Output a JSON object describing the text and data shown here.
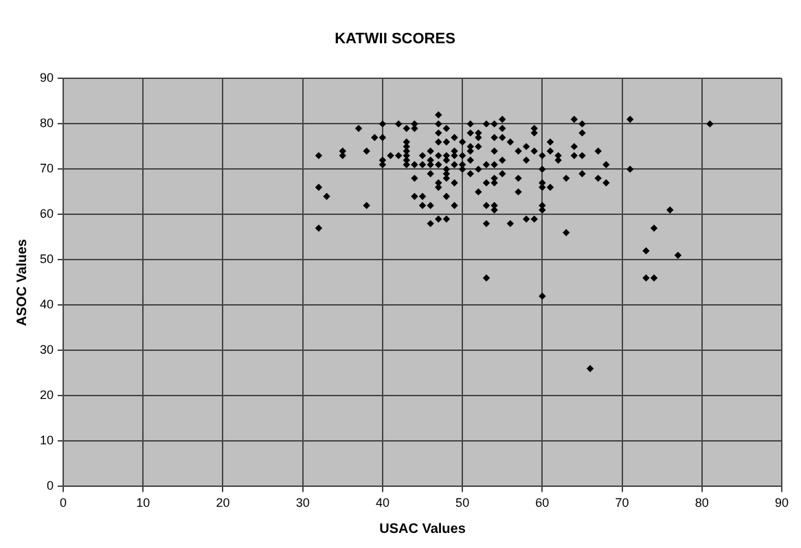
{
  "chart_data": {
    "type": "scatter",
    "title": "KATWII SCORES",
    "xlabel": "USAC Values",
    "ylabel": "ASOC Values",
    "xlim": [
      0,
      90
    ],
    "xticks": [
      0,
      10,
      20,
      30,
      40,
      50,
      60,
      70,
      80,
      90
    ],
    "ylim": [
      0,
      90
    ],
    "yticks": [
      0,
      10,
      20,
      30,
      40,
      50,
      60,
      70,
      80,
      90
    ],
    "grid": true,
    "legend": false,
    "marker": "diamond",
    "series": [
      {
        "color": "#000000",
        "x": [
          32,
          32,
          32,
          33,
          35,
          35,
          37,
          38,
          38,
          39,
          40,
          40,
          40,
          40,
          41,
          42,
          42,
          43,
          43,
          43,
          43,
          43,
          43,
          43,
          44,
          44,
          44,
          44,
          44,
          45,
          45,
          45,
          45,
          46,
          46,
          46,
          46,
          46,
          46,
          47,
          47,
          47,
          47,
          47,
          47,
          47,
          47,
          47,
          48,
          48,
          48,
          48,
          48,
          48,
          48,
          48,
          48,
          49,
          49,
          49,
          49,
          49,
          49,
          50,
          50,
          50,
          50,
          51,
          51,
          51,
          51,
          51,
          51,
          52,
          52,
          52,
          52,
          52,
          53,
          53,
          53,
          53,
          53,
          53,
          54,
          54,
          54,
          54,
          54,
          54,
          54,
          54,
          55,
          55,
          55,
          55,
          55,
          56,
          56,
          57,
          57,
          57,
          58,
          58,
          58,
          59,
          59,
          59,
          59,
          60,
          60,
          60,
          60,
          60,
          60,
          60,
          61,
          61,
          61,
          62,
          62,
          63,
          63,
          64,
          64,
          64,
          65,
          65,
          65,
          65,
          66,
          67,
          67,
          68,
          68,
          71,
          71,
          73,
          73,
          74,
          74,
          76,
          77,
          81
        ],
        "values": [
          73,
          66,
          57,
          64,
          74,
          73,
          79,
          74,
          62,
          77,
          77,
          80,
          72,
          71,
          73,
          80,
          73,
          76,
          79,
          75,
          74,
          73,
          72,
          71,
          80,
          79,
          71,
          68,
          64,
          73,
          71,
          64,
          62,
          74,
          72,
          71,
          69,
          62,
          58,
          80,
          82,
          78,
          76,
          73,
          71,
          67,
          66,
          59,
          79,
          76,
          73,
          72,
          70,
          69,
          68,
          64,
          59,
          77,
          74,
          73,
          71,
          67,
          62,
          76,
          73,
          71,
          70,
          80,
          78,
          75,
          74,
          72,
          69,
          78,
          77,
          75,
          70,
          65,
          80,
          71,
          67,
          62,
          58,
          46,
          80,
          77,
          74,
          71,
          68,
          67,
          62,
          61,
          81,
          79,
          77,
          72,
          69,
          76,
          58,
          74,
          68,
          65,
          75,
          72,
          59,
          79,
          78,
          74,
          59,
          73,
          70,
          67,
          66,
          62,
          61,
          42,
          76,
          74,
          66,
          73,
          72,
          68,
          56,
          81,
          75,
          73,
          80,
          78,
          73,
          69,
          26,
          74,
          68,
          71,
          67,
          81,
          70,
          52,
          46,
          57,
          46,
          61,
          51,
          80
        ]
      }
    ]
  }
}
